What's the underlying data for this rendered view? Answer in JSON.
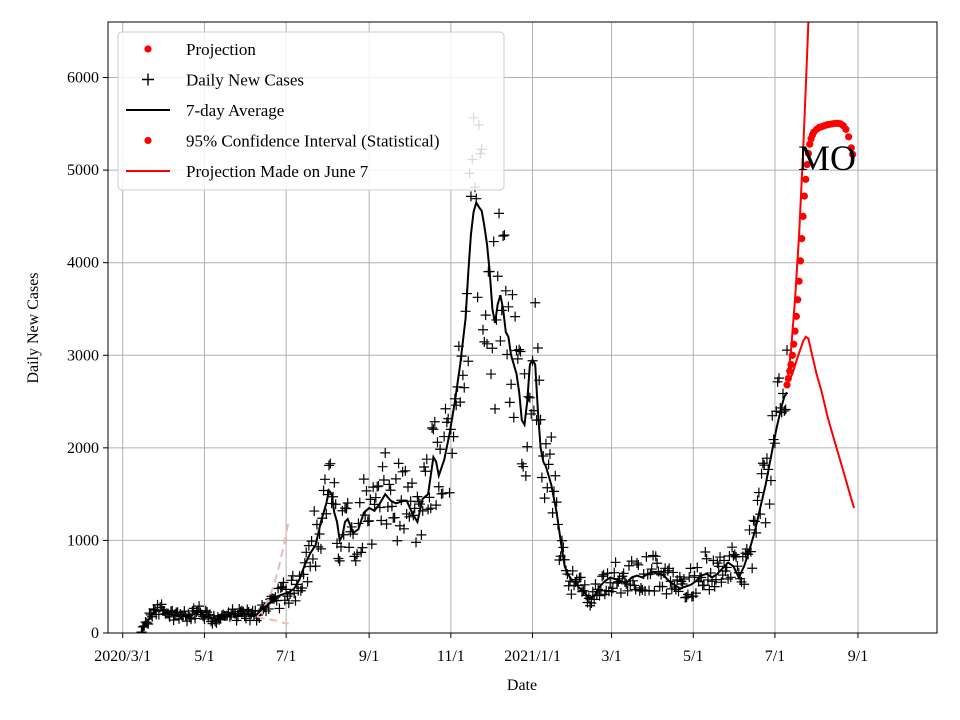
{
  "chart_data": {
    "type": "line",
    "title": "",
    "annotation": "MO",
    "xlabel": "Date",
    "ylabel": "Daily New Cases",
    "ylim": [
      0,
      6600
    ],
    "y_ticks": [
      0,
      1000,
      2000,
      3000,
      4000,
      5000,
      6000
    ],
    "x_tick_labels": [
      "2020/3/1",
      "5/1",
      "7/1",
      "9/1",
      "11/1",
      "2021/1/1",
      "3/1",
      "5/1",
      "7/1",
      "9/1"
    ],
    "x_tick_days": [
      0,
      61,
      122,
      184,
      245,
      306,
      365,
      426,
      487,
      549
    ],
    "xlim_days": [
      -11,
      608
    ],
    "grid": true,
    "legend_position": "top-left",
    "legend": [
      {
        "label": "Projection",
        "marker": "dot",
        "color": "#ff0000"
      },
      {
        "label": "Daily New Cases",
        "marker": "plus",
        "color": "#000000"
      },
      {
        "label": "7-day Average",
        "marker": "line",
        "color": "#000000"
      },
      {
        "label": "95% Confidence Interval (Statistical)",
        "marker": "dot",
        "color": "#ff0000"
      },
      {
        "label": "Projection Made on June 7",
        "marker": "line",
        "color": "#ff0000"
      }
    ],
    "series": [
      {
        "name": "7-day Average",
        "color": "#000000",
        "points": [
          [
            14,
            20
          ],
          [
            18,
            110
          ],
          [
            22,
            210
          ],
          [
            26,
            240
          ],
          [
            30,
            250
          ],
          [
            34,
            210
          ],
          [
            38,
            190
          ],
          [
            42,
            200
          ],
          [
            46,
            195
          ],
          [
            50,
            180
          ],
          [
            54,
            210
          ],
          [
            58,
            230
          ],
          [
            62,
            180
          ],
          [
            66,
            160
          ],
          [
            70,
            150
          ],
          [
            74,
            170
          ],
          [
            78,
            190
          ],
          [
            82,
            200
          ],
          [
            86,
            190
          ],
          [
            90,
            210
          ],
          [
            94,
            200
          ],
          [
            98,
            180
          ],
          [
            100,
            200
          ],
          [
            104,
            260
          ],
          [
            108,
            300
          ],
          [
            112,
            350
          ],
          [
            116,
            400
          ],
          [
            120,
            420
          ],
          [
            124,
            440
          ],
          [
            128,
            480
          ],
          [
            132,
            580
          ],
          [
            136,
            740
          ],
          [
            140,
            860
          ],
          [
            144,
            950
          ],
          [
            148,
            1200
          ],
          [
            152,
            1400
          ],
          [
            154,
            1540
          ],
          [
            156,
            1500
          ],
          [
            158,
            1300
          ],
          [
            160,
            1200
          ],
          [
            162,
            1000
          ],
          [
            164,
            1050
          ],
          [
            166,
            1200
          ],
          [
            168,
            1230
          ],
          [
            170,
            1160
          ],
          [
            172,
            1080
          ],
          [
            176,
            1120
          ],
          [
            180,
            1300
          ],
          [
            184,
            1350
          ],
          [
            188,
            1320
          ],
          [
            192,
            1400
          ],
          [
            196,
            1500
          ],
          [
            200,
            1430
          ],
          [
            204,
            1400
          ],
          [
            208,
            1420
          ],
          [
            212,
            1430
          ],
          [
            216,
            1300
          ],
          [
            220,
            1200
          ],
          [
            224,
            1450
          ],
          [
            228,
            1500
          ],
          [
            232,
            1900
          ],
          [
            234,
            1850
          ],
          [
            236,
            1700
          ],
          [
            240,
            1870
          ],
          [
            244,
            2150
          ],
          [
            248,
            2500
          ],
          [
            252,
            2900
          ],
          [
            256,
            3400
          ],
          [
            258,
            3900
          ],
          [
            260,
            4300
          ],
          [
            262,
            4550
          ],
          [
            264,
            4650
          ],
          [
            266,
            4600
          ],
          [
            268,
            4560
          ],
          [
            270,
            4400
          ],
          [
            272,
            4200
          ],
          [
            274,
            3900
          ],
          [
            276,
            3500
          ],
          [
            278,
            3350
          ],
          [
            280,
            3550
          ],
          [
            282,
            3650
          ],
          [
            284,
            3500
          ],
          [
            286,
            3250
          ],
          [
            288,
            3200
          ],
          [
            290,
            3000
          ],
          [
            292,
            2900
          ],
          [
            294,
            2800
          ],
          [
            296,
            2600
          ],
          [
            298,
            2300
          ],
          [
            300,
            2250
          ],
          [
            302,
            2500
          ],
          [
            304,
            2900
          ],
          [
            306,
            2950
          ],
          [
            308,
            2900
          ],
          [
            310,
            2400
          ],
          [
            312,
            2000
          ],
          [
            314,
            1850
          ],
          [
            316,
            1800
          ],
          [
            318,
            1700
          ],
          [
            320,
            1600
          ],
          [
            322,
            1450
          ],
          [
            324,
            1300
          ],
          [
            326,
            1100
          ],
          [
            328,
            900
          ],
          [
            330,
            720
          ],
          [
            332,
            650
          ],
          [
            334,
            600
          ],
          [
            336,
            560
          ],
          [
            338,
            540
          ],
          [
            340,
            500
          ],
          [
            344,
            450
          ],
          [
            348,
            380
          ],
          [
            352,
            400
          ],
          [
            356,
            500
          ],
          [
            360,
            560
          ],
          [
            364,
            600
          ],
          [
            368,
            580
          ],
          [
            372,
            560
          ],
          [
            376,
            540
          ],
          [
            380,
            600
          ],
          [
            384,
            620
          ],
          [
            388,
            600
          ],
          [
            392,
            640
          ],
          [
            396,
            660
          ],
          [
            400,
            640
          ],
          [
            404,
            620
          ],
          [
            408,
            560
          ],
          [
            412,
            520
          ],
          [
            416,
            480
          ],
          [
            420,
            500
          ],
          [
            424,
            520
          ],
          [
            428,
            560
          ],
          [
            432,
            620
          ],
          [
            436,
            640
          ],
          [
            440,
            600
          ],
          [
            444,
            640
          ],
          [
            448,
            700
          ],
          [
            452,
            760
          ],
          [
            456,
            720
          ],
          [
            460,
            600
          ],
          [
            464,
            720
          ],
          [
            468,
            900
          ],
          [
            472,
            1100
          ],
          [
            476,
            1350
          ],
          [
            480,
            1600
          ],
          [
            484,
            1900
          ],
          [
            488,
            2200
          ],
          [
            492,
            2450
          ],
          [
            494,
            2550
          ],
          [
            496,
            2600
          ]
        ]
      },
      {
        "name": "Projection Made on June 7",
        "color": "#ff0000",
        "points": [
          [
            496,
            2680
          ],
          [
            500,
            2800
          ],
          [
            504,
            2980
          ],
          [
            508,
            3150
          ],
          [
            510,
            3200
          ],
          [
            512,
            3180
          ],
          [
            514,
            3050
          ],
          [
            518,
            2800
          ],
          [
            522,
            2600
          ],
          [
            526,
            2350
          ],
          [
            530,
            2150
          ],
          [
            534,
            1950
          ],
          [
            538,
            1750
          ],
          [
            542,
            1550
          ],
          [
            546,
            1350
          ]
        ]
      },
      {
        "name": "Projection Made on June 7 (upper bound)",
        "color": "#ff0000",
        "points": [
          [
            496,
            2680
          ],
          [
            499,
            3050
          ],
          [
            502,
            3600
          ],
          [
            505,
            4300
          ],
          [
            508,
            5200
          ],
          [
            510,
            5900
          ],
          [
            512,
            6600
          ]
        ]
      },
      {
        "name": "Projection",
        "color": "#ff0000",
        "points": [
          [
            496,
            2680
          ],
          [
            497,
            2750
          ],
          [
            498,
            2830
          ],
          [
            499,
            2900
          ],
          [
            500,
            3000
          ],
          [
            501,
            3120
          ],
          [
            502,
            3260
          ],
          [
            503,
            3420
          ],
          [
            504,
            3600
          ],
          [
            505,
            3800
          ],
          [
            506,
            4020
          ],
          [
            507,
            4260
          ],
          [
            508,
            4500
          ],
          [
            509,
            4720
          ],
          [
            510,
            4900
          ],
          [
            511,
            5060
          ],
          [
            512,
            5180
          ],
          [
            513,
            5280
          ],
          [
            514,
            5340
          ],
          [
            515,
            5380
          ],
          [
            516,
            5410
          ],
          [
            518,
            5440
          ],
          [
            520,
            5460
          ],
          [
            522,
            5470
          ],
          [
            524,
            5480
          ],
          [
            526,
            5490
          ],
          [
            528,
            5495
          ],
          [
            530,
            5500
          ],
          [
            532,
            5505
          ],
          [
            534,
            5505
          ],
          [
            536,
            5500
          ],
          [
            538,
            5480
          ],
          [
            540,
            5440
          ],
          [
            542,
            5360
          ],
          [
            544,
            5240
          ],
          [
            545,
            5170
          ]
        ]
      },
      {
        "name": "Earlier projection bounds",
        "color": "#f4b6b6",
        "dashed": true,
        "points_upper": [
          [
            100,
            180
          ],
          [
            104,
            240
          ],
          [
            108,
            340
          ],
          [
            112,
            480
          ],
          [
            116,
            680
          ],
          [
            120,
            920
          ],
          [
            124,
            1220
          ]
        ],
        "points_lower": [
          [
            100,
            180
          ],
          [
            104,
            160
          ],
          [
            108,
            150
          ],
          [
            112,
            140
          ],
          [
            116,
            130
          ],
          [
            120,
            110
          ],
          [
            124,
            100
          ]
        ]
      }
    ],
    "daily_cases_scatter": {
      "name": "Daily New Cases",
      "marker": "+",
      "color": "#000000",
      "follows": "7-day Average",
      "spread_ratio": 0.16,
      "count_approx": 485
    }
  }
}
